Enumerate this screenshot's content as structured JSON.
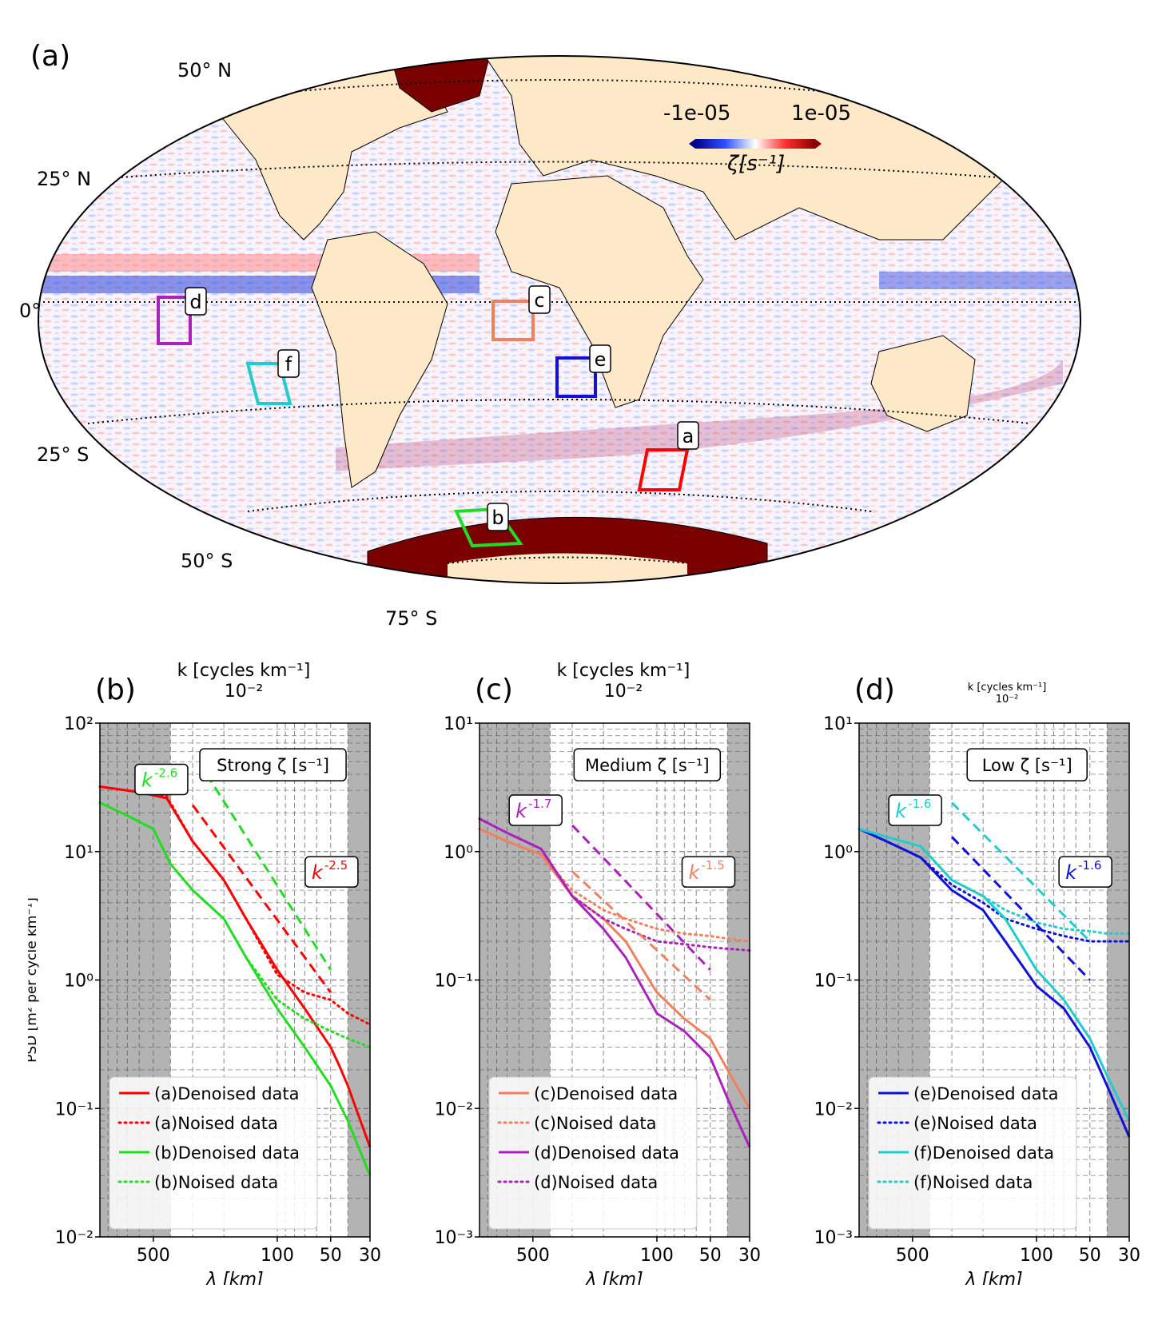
{
  "map": {
    "panel_label": "(a)",
    "lat_labels": [
      "50° N",
      "25° N",
      "0°",
      "25° S",
      "50° S",
      "75° S"
    ],
    "colorbar": {
      "min_label": "-1e-05",
      "max_label": "1e-05",
      "label": "ζ[s⁻¹]"
    },
    "regions": [
      {
        "id": "a",
        "color": "#ff0000"
      },
      {
        "id": "b",
        "color": "#22dd22"
      },
      {
        "id": "c",
        "color": "#f08060"
      },
      {
        "id": "d",
        "color": "#aa22bb"
      },
      {
        "id": "e",
        "color": "#1010dd"
      },
      {
        "id": "f",
        "color": "#22cccc"
      }
    ]
  },
  "chart_data": [
    {
      "type": "line",
      "panel_label": "(b)",
      "top_axis_label": "k [cycles km⁻¹]",
      "top_tick_label": "10⁻²",
      "xlabel": "λ [km]",
      "ylabel": "PSD [m² per cycle km⁻¹]",
      "x_scale": "log",
      "y_scale": "log",
      "xlim": [
        1000,
        30
      ],
      "ylim": [
        0.01,
        100
      ],
      "xticks": [
        "500",
        "100",
        "50",
        "30"
      ],
      "yticks": [
        "10⁻²",
        "10⁻¹",
        "10⁰",
        "10¹",
        "10²"
      ],
      "shaded_ranges": [
        [
          1000,
          400
        ],
        [
          40,
          30
        ]
      ],
      "annotation": "Strong ζ  [s⁻¹]",
      "slope_labels": [
        {
          "text": "k",
          "exp": "-2.6",
          "color": "#22dd22"
        },
        {
          "text": "k",
          "exp": "-2.5",
          "color": "#ff0000"
        }
      ],
      "series": [
        {
          "name": "(a)Denoised data",
          "color": "#ff0000",
          "style": "solid",
          "x": [
            1000,
            600,
            420,
            300,
            200,
            150,
            100,
            70,
            50,
            45,
            40,
            35,
            30
          ],
          "y": [
            32,
            29,
            26,
            12,
            6,
            3,
            1.2,
            0.6,
            0.3,
            0.22,
            0.15,
            0.09,
            0.05
          ]
        },
        {
          "name": "(a)Noised data",
          "color": "#ff0000",
          "style": "dotted",
          "x": [
            1000,
            600,
            420,
            300,
            200,
            150,
            100,
            70,
            50,
            40,
            30
          ],
          "y": [
            32,
            29,
            27,
            12,
            6,
            3,
            1.1,
            0.8,
            0.7,
            0.55,
            0.45
          ]
        },
        {
          "name": "(b)Denoised data",
          "color": "#22dd22",
          "style": "solid",
          "x": [
            1000,
            700,
            500,
            400,
            300,
            200,
            150,
            100,
            70,
            50,
            40,
            30
          ],
          "y": [
            24,
            19,
            15,
            8,
            5,
            3,
            1.5,
            0.6,
            0.3,
            0.15,
            0.08,
            0.03
          ]
        },
        {
          "name": "(b)Noised data",
          "color": "#22dd22",
          "style": "dotted",
          "x": [
            1000,
            700,
            500,
            400,
            300,
            200,
            150,
            100,
            70,
            50,
            40,
            30
          ],
          "y": [
            24,
            19,
            15,
            8,
            5,
            3,
            1.5,
            0.7,
            0.5,
            0.4,
            0.35,
            0.3
          ]
        },
        {
          "name": "",
          "color": "#ff0000",
          "style": "dashed",
          "x": [
            300,
            50
          ],
          "y": [
            23,
            0.8
          ]
        },
        {
          "name": "",
          "color": "#22dd22",
          "style": "dashed",
          "x": [
            250,
            50
          ],
          "y": [
            40,
            1.2
          ]
        }
      ]
    },
    {
      "type": "line",
      "panel_label": "(c)",
      "top_axis_label": "k [cycles km⁻¹]",
      "top_tick_label": "10⁻²",
      "xlabel": "λ [km]",
      "ylabel": "",
      "x_scale": "log",
      "y_scale": "log",
      "xlim": [
        1000,
        30
      ],
      "ylim": [
        0.001,
        10
      ],
      "xticks": [
        "500",
        "100",
        "50",
        "30"
      ],
      "yticks": [
        "10⁻³",
        "10⁻²",
        "10⁻¹",
        "10⁰",
        "10¹"
      ],
      "shaded_ranges": [
        [
          1000,
          400
        ],
        [
          40,
          30
        ]
      ],
      "annotation": "Medium ζ  [s⁻¹]",
      "slope_labels": [
        {
          "text": "k",
          "exp": "-1.7",
          "color": "#aa22bb"
        },
        {
          "text": "k",
          "exp": "-1.5",
          "color": "#f08060"
        }
      ],
      "series": [
        {
          "name": "(c)Denoised data",
          "color": "#f08060",
          "style": "solid",
          "x": [
            1000,
            700,
            450,
            300,
            200,
            150,
            100,
            70,
            50,
            40,
            30
          ],
          "y": [
            1.5,
            1.2,
            0.95,
            0.45,
            0.3,
            0.2,
            0.08,
            0.05,
            0.035,
            0.02,
            0.01
          ]
        },
        {
          "name": "(c)Noised data",
          "color": "#f08060",
          "style": "dotted",
          "x": [
            1000,
            700,
            450,
            300,
            200,
            150,
            100,
            70,
            50,
            40,
            30
          ],
          "y": [
            1.5,
            1.2,
            0.95,
            0.5,
            0.35,
            0.3,
            0.25,
            0.23,
            0.22,
            0.21,
            0.2
          ]
        },
        {
          "name": "(d)Denoised data",
          "color": "#aa22bb",
          "style": "solid",
          "x": [
            1000,
            700,
            450,
            300,
            200,
            150,
            100,
            70,
            50,
            40,
            30
          ],
          "y": [
            1.8,
            1.4,
            1.05,
            0.45,
            0.25,
            0.15,
            0.055,
            0.04,
            0.025,
            0.012,
            0.005
          ]
        },
        {
          "name": "(d)Noised data",
          "color": "#aa22bb",
          "style": "dotted",
          "x": [
            1000,
            700,
            450,
            300,
            200,
            150,
            100,
            70,
            50,
            40,
            30
          ],
          "y": [
            1.8,
            1.4,
            1.05,
            0.45,
            0.3,
            0.25,
            0.2,
            0.19,
            0.18,
            0.175,
            0.17
          ]
        },
        {
          "name": "",
          "color": "#f08060",
          "style": "dashed",
          "x": [
            300,
            50
          ],
          "y": [
            0.7,
            0.07
          ]
        },
        {
          "name": "",
          "color": "#aa22bb",
          "style": "dashed",
          "x": [
            300,
            50
          ],
          "y": [
            1.6,
            0.12
          ]
        }
      ]
    },
    {
      "type": "line",
      "panel_label": "(d)",
      "top_axis_label": "k [cycles km⁻¹]",
      "top_tick_label": "10⁻²",
      "xlabel": "λ [km]",
      "ylabel": "",
      "x_scale": "log",
      "y_scale": "log",
      "xlim": [
        1000,
        30
      ],
      "ylim": [
        0.001,
        10
      ],
      "xticks": [
        "500",
        "100",
        "50",
        "30"
      ],
      "yticks": [
        "10⁻³",
        "10⁻²",
        "10⁻¹",
        "10⁰",
        "10¹"
      ],
      "shaded_ranges": [
        [
          1000,
          400
        ],
        [
          40,
          30
        ]
      ],
      "annotation": "Low ζ  [s⁻¹]",
      "slope_labels": [
        {
          "text": "k",
          "exp": "-1.6",
          "color": "#22cccc"
        },
        {
          "text": "k",
          "exp": "-1.6",
          "color": "#1010dd"
        }
      ],
      "series": [
        {
          "name": "(e)Denoised data",
          "color": "#1010dd",
          "style": "solid",
          "x": [
            1000,
            700,
            450,
            300,
            200,
            150,
            100,
            70,
            50,
            40,
            30
          ],
          "y": [
            1.5,
            1.2,
            0.9,
            0.5,
            0.35,
            0.2,
            0.09,
            0.06,
            0.03,
            0.015,
            0.006
          ]
        },
        {
          "name": "(e)Noised data",
          "color": "#1010dd",
          "style": "dotted",
          "x": [
            1000,
            700,
            450,
            300,
            200,
            150,
            100,
            70,
            50,
            40,
            30
          ],
          "y": [
            1.5,
            1.2,
            0.9,
            0.55,
            0.4,
            0.3,
            0.25,
            0.22,
            0.2,
            0.2,
            0.2
          ]
        },
        {
          "name": "(f)Denoised data",
          "color": "#22cccc",
          "style": "solid",
          "x": [
            1000,
            700,
            450,
            300,
            200,
            150,
            100,
            70,
            50,
            40,
            30
          ],
          "y": [
            1.5,
            1.3,
            1.1,
            0.6,
            0.45,
            0.3,
            0.12,
            0.07,
            0.035,
            0.018,
            0.008
          ]
        },
        {
          "name": "(f)Noised data",
          "color": "#22cccc",
          "style": "dotted",
          "x": [
            1000,
            700,
            450,
            300,
            200,
            150,
            100,
            70,
            50,
            40,
            30
          ],
          "y": [
            1.5,
            1.3,
            1.1,
            0.6,
            0.45,
            0.35,
            0.28,
            0.25,
            0.24,
            0.23,
            0.23
          ]
        },
        {
          "name": "",
          "color": "#1010dd",
          "style": "dashed",
          "x": [
            300,
            50
          ],
          "y": [
            1.3,
            0.1
          ]
        },
        {
          "name": "",
          "color": "#22cccc",
          "style": "dashed",
          "x": [
            300,
            50
          ],
          "y": [
            2.4,
            0.2
          ]
        }
      ]
    }
  ]
}
